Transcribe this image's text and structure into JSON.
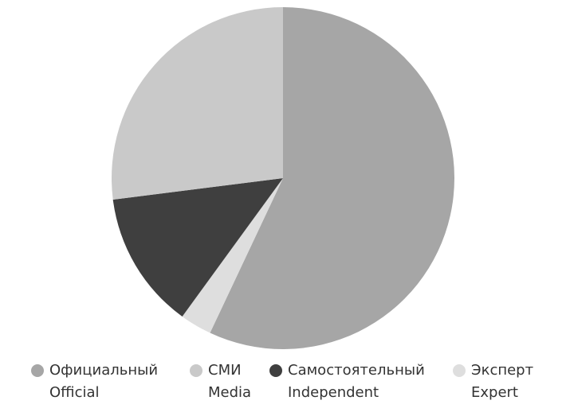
{
  "chart_data": {
    "type": "pie",
    "categories": [
      "Официальный",
      "СМИ",
      "Самостоятельный",
      "Эксперт"
    ],
    "categories_en": [
      "Official",
      "Media",
      "Independent",
      "Expert"
    ],
    "values": [
      57,
      27,
      13,
      3
    ],
    "colors": [
      "#a6a6a6",
      "#c9c9c9",
      "#3f3f3f",
      "#dedede"
    ]
  }
}
